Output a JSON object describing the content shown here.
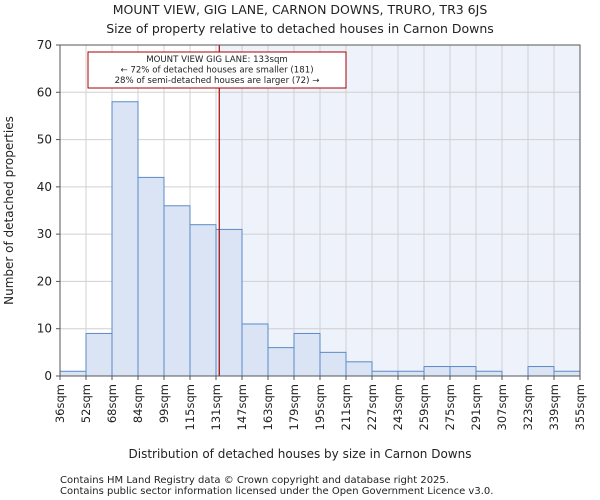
{
  "chart_data": {
    "type": "bar",
    "title": "MOUNT VIEW, GIG LANE, CARNON DOWNS, TRURO, TR3 6JS",
    "subtitle": "Size of property relative to detached houses in Carnon Downs",
    "xlabel": "Distribution of detached houses by size in Carnon Downs",
    "ylabel": "Number of detached properties",
    "ylim": [
      0,
      70
    ],
    "yticks": [
      0,
      10,
      20,
      30,
      40,
      50,
      60,
      70
    ],
    "bin_edges": [
      36,
      52,
      68,
      84,
      99,
      115,
      131,
      147,
      163,
      179,
      195,
      211,
      227,
      243,
      259,
      275,
      291,
      307,
      323,
      339,
      355
    ],
    "x_tick_labels": [
      "36sqm",
      "52sqm",
      "68sqm",
      "84sqm",
      "99sqm",
      "115sqm",
      "131sqm",
      "147sqm",
      "163sqm",
      "179sqm",
      "195sqm",
      "211sqm",
      "227sqm",
      "243sqm",
      "259sqm",
      "275sqm",
      "291sqm",
      "307sqm",
      "323sqm",
      "339sqm",
      "355sqm"
    ],
    "values": [
      1,
      9,
      58,
      42,
      36,
      32,
      31,
      11,
      6,
      9,
      5,
      3,
      1,
      1,
      2,
      2,
      1,
      0,
      2,
      1
    ],
    "marker": {
      "value": 133,
      "color": "#aa0000"
    },
    "annotation": {
      "lines": [
        "MOUNT VIEW GIG LANE: 133sqm",
        "← 72% of detached houses are smaller (181)",
        "28% of semi-detached houses are larger (72) →"
      ]
    },
    "colors": {
      "bar_fill_left": "#dae4f4",
      "bar_fill_right": "#dae4f4",
      "bar_stroke": "#5b8ac9",
      "shade_right": "#eef2fb",
      "grid": "#d0d0d0"
    },
    "grid": true
  },
  "footer": {
    "line1": "Contains HM Land Registry data © Crown copyright and database right 2025.",
    "line2": "Contains public sector information licensed under the Open Government Licence v3.0."
  }
}
